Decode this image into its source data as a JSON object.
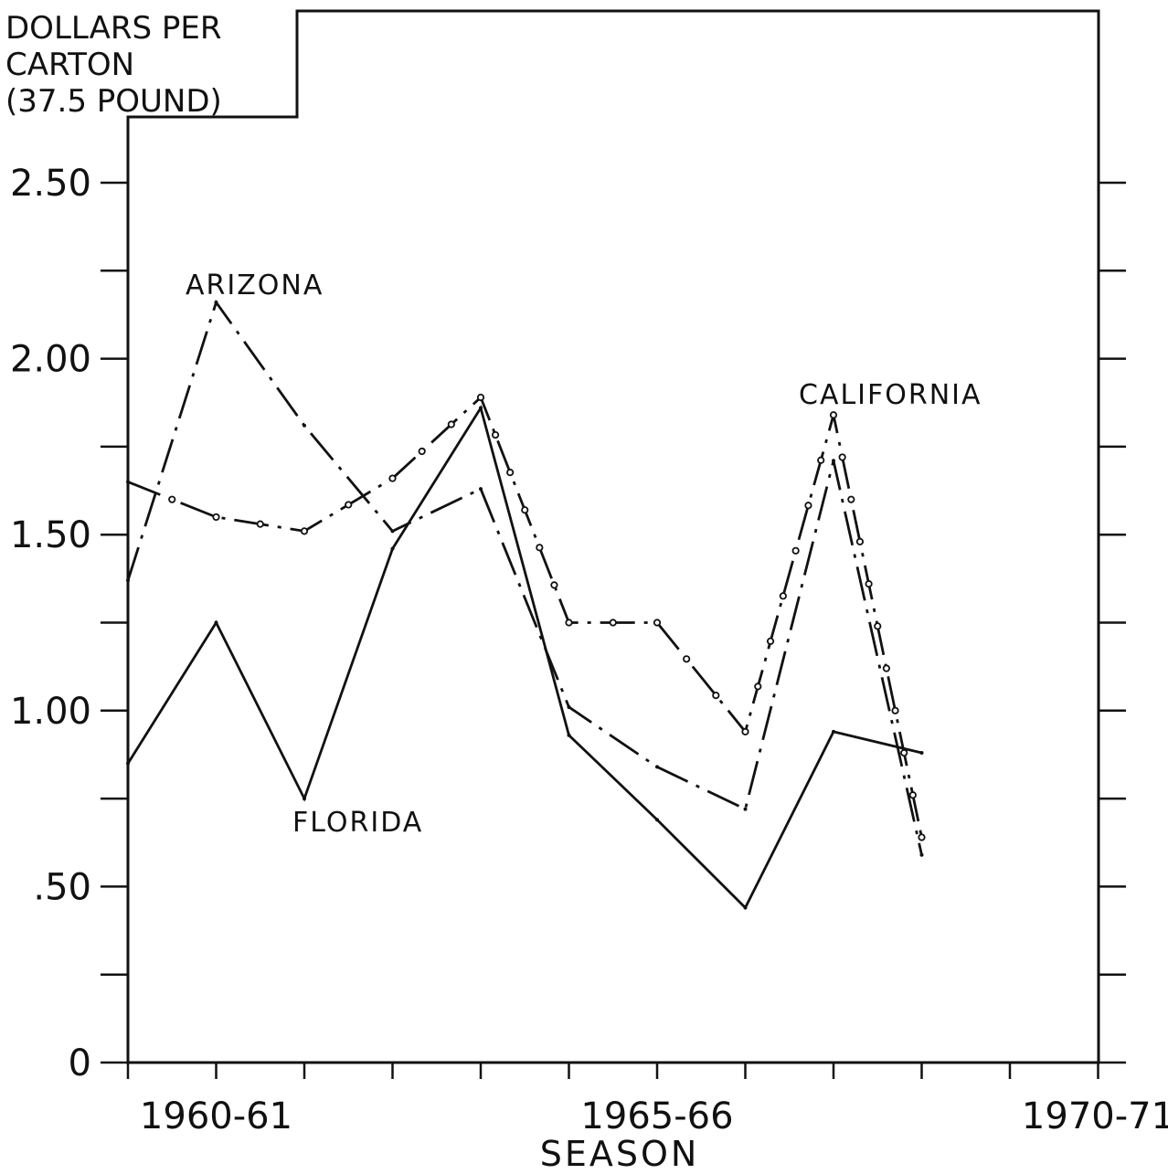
{
  "chart_data": {
    "type": "line",
    "ylabel_lines": [
      "DOLLARS PER",
      "CARTON",
      "(37.5 POUND)"
    ],
    "xlabel": "SEASON",
    "x_tick_labels": [
      "1960-61",
      "1965-66",
      "1970-71"
    ],
    "y_tick_labels": [
      "0",
      ".50",
      "1.00",
      "1.50",
      "2.00",
      "2.50"
    ],
    "y_ticks": [
      0,
      0.5,
      1.0,
      1.5,
      2.0,
      2.5
    ],
    "ylim": [
      0,
      2.75
    ],
    "x": [
      "1959-60",
      "1960-61",
      "1961-62",
      "1962-63",
      "1963-64",
      "1964-65",
      "1965-66",
      "1966-67",
      "1967-68",
      "1968-69"
    ],
    "series": [
      {
        "name": "ARIZONA",
        "style": "dash-dot",
        "values": [
          1.37,
          2.16,
          1.81,
          1.51,
          1.63,
          1.01,
          0.84,
          0.72,
          1.71,
          0.59
        ]
      },
      {
        "name": "CALIFORNIA",
        "style": "dash-dot-circles",
        "values": [
          1.65,
          1.55,
          1.51,
          1.66,
          1.89,
          1.25,
          1.25,
          0.94,
          1.84,
          0.64
        ]
      },
      {
        "name": "FLORIDA",
        "style": "solid",
        "values": [
          0.85,
          1.25,
          0.75,
          1.46,
          1.86,
          0.93,
          0.69,
          0.44,
          0.94,
          0.88
        ]
      }
    ],
    "grid": false,
    "legend": "inline labels"
  }
}
